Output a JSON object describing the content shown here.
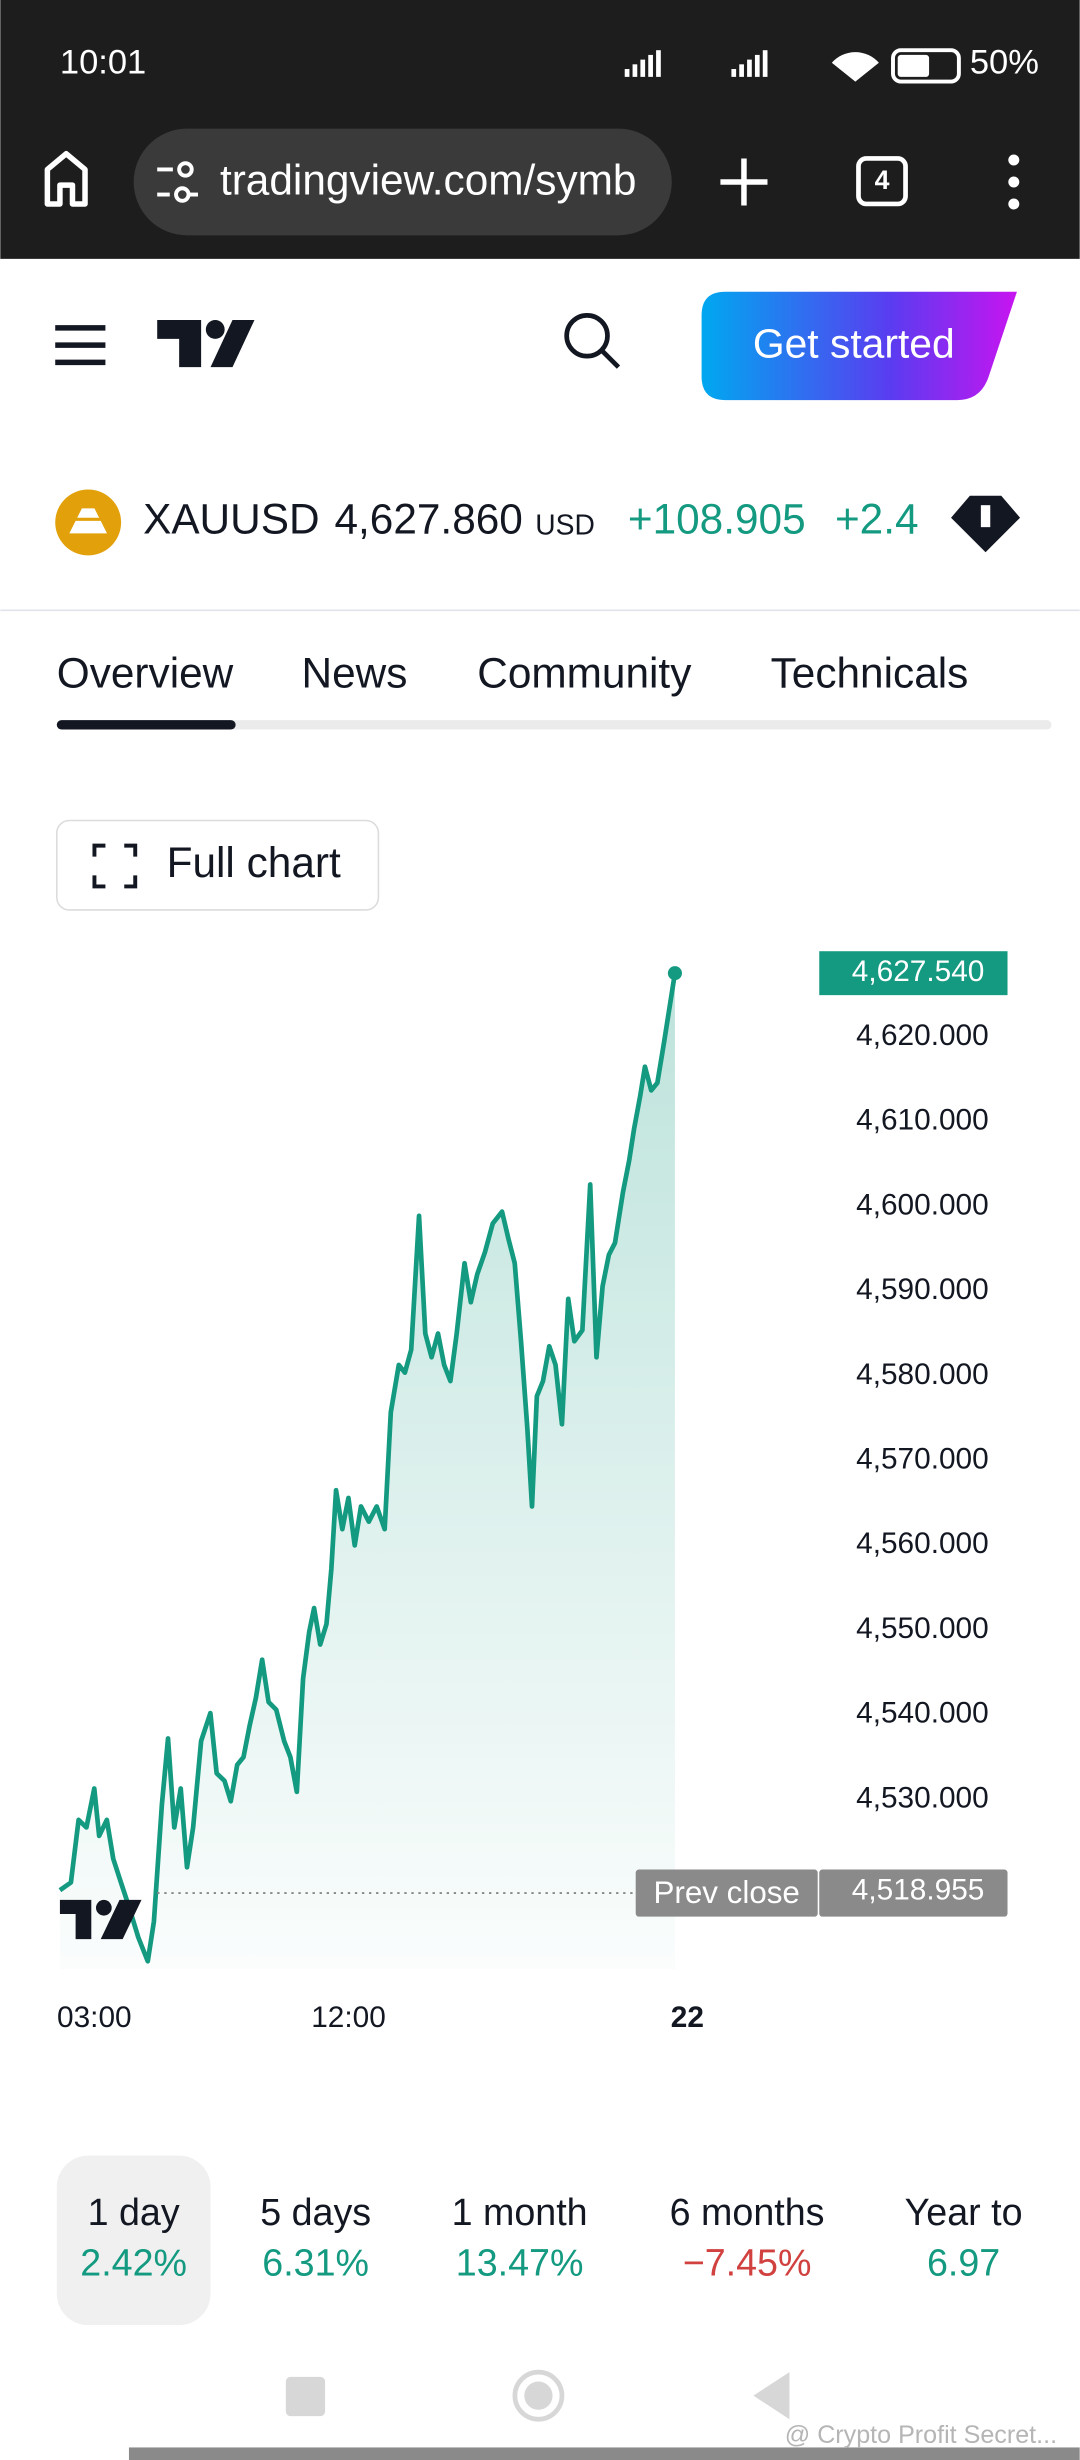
{
  "status_bar": {
    "time": "10:01",
    "battery": "50%"
  },
  "browser": {
    "url": "tradingview.com/symb",
    "tab_count": "4"
  },
  "header": {
    "cta": "Get started"
  },
  "symbol": {
    "ticker": "XAUUSD",
    "price": "4,627.860",
    "currency": "USD",
    "change": "+108.905",
    "change_pct": "+2.4"
  },
  "tabs": [
    "Overview",
    "News",
    "Community",
    "Technicals"
  ],
  "full_chart": "Full chart",
  "chart_data": {
    "type": "line",
    "color": "#149a80",
    "x": [
      1.78,
      2.17,
      2.44,
      2.72,
      3.0,
      3.17,
      3.44,
      3.67,
      3.94,
      4.22,
      4.56,
      4.89,
      5.11,
      5.39,
      5.61,
      5.83,
      6.06,
      6.28,
      6.5,
      6.78,
      7.11,
      7.33,
      7.61,
      7.83,
      8.06,
      8.28,
      8.5,
      8.72,
      8.94,
      9.17,
      9.44,
      9.72,
      9.94,
      10.17,
      10.39,
      10.61,
      10.78,
      11.0,
      11.22,
      11.39,
      11.56,
      11.78,
      12.0,
      12.22,
      12.44,
      12.72,
      13.0,
      13.28,
      13.5,
      13.78,
      14.0,
      14.22,
      14.5,
      14.72,
      14.94,
      15.17,
      15.39,
      15.61,
      15.83,
      16.11,
      16.33,
      16.56,
      16.83,
      17.11,
      17.44,
      17.67,
      17.89,
      18.11,
      18.33,
      18.5,
      18.67,
      18.89,
      19.11,
      19.33,
      19.56,
      19.78,
      20.0,
      20.28,
      20.56,
      20.78,
      21.0,
      21.22,
      21.44,
      21.72,
      21.94,
      22.11,
      22.33,
      22.5,
      22.72,
      22.94,
      23.17,
      23.39,
      23.56
    ],
    "values": [
      4519.3,
      4520.2,
      4527.6,
      4526.7,
      4531.3,
      4525.7,
      4527.6,
      4523.0,
      4520.2,
      4517.4,
      4513.7,
      4510.9,
      4515.6,
      4529.4,
      4537.2,
      4526.7,
      4531.3,
      4522.0,
      4526.7,
      4536.9,
      4540.2,
      4533.1,
      4532.2,
      4529.8,
      4534.1,
      4535.0,
      4538.7,
      4542.0,
      4546.5,
      4541.5,
      4540.6,
      4536.9,
      4535.0,
      4530.9,
      4544.3,
      4549.8,
      4552.6,
      4548.3,
      4550.7,
      4557.2,
      4566.5,
      4561.9,
      4565.6,
      4560.0,
      4564.6,
      4562.8,
      4564.6,
      4561.9,
      4575.7,
      4581.3,
      4580.4,
      4583.1,
      4598.9,
      4585.0,
      4582.2,
      4585.0,
      4581.3,
      4579.4,
      4585.0,
      4593.3,
      4588.7,
      4592.0,
      4594.6,
      4598.0,
      4599.4,
      4596.1,
      4593.3,
      4584.1,
      4573.9,
      4564.6,
      4577.6,
      4579.4,
      4583.5,
      4581.3,
      4574.3,
      4589.1,
      4584.1,
      4585.4,
      4602.6,
      4582.2,
      4590.6,
      4594.3,
      4595.7,
      4601.7,
      4605.4,
      4609.1,
      4613.1,
      4616.5,
      4613.7,
      4614.6,
      4619.3,
      4623.9,
      4627.54
    ],
    "xlim": [
      1.67,
      28.56
    ],
    "xticks": [
      {
        "value": 3,
        "label": "03:00"
      },
      {
        "value": 12,
        "label": "12:00"
      },
      {
        "value": 24,
        "label": "22"
      }
    ],
    "ylim": [
      4510,
      4631.3
    ],
    "yticks": [
      {
        "value": 4620,
        "label": "4,620.000"
      },
      {
        "value": 4610,
        "label": "4,610.000"
      },
      {
        "value": 4600,
        "label": "4,600.000"
      },
      {
        "value": 4590,
        "label": "4,590.000"
      },
      {
        "value": 4580,
        "label": "4,580.000"
      },
      {
        "value": 4570,
        "label": "4,570.000"
      },
      {
        "value": 4560,
        "label": "4,560.000"
      },
      {
        "value": 4550,
        "label": "4,550.000"
      },
      {
        "value": 4540,
        "label": "4,540.000"
      },
      {
        "value": 4530,
        "label": "4,530.000"
      }
    ],
    "last_price": {
      "value": 4627.54,
      "label": "4,627.540"
    },
    "prev_close": {
      "label": "Prev close",
      "value": 4518.955,
      "value_label": "4,518.955"
    }
  },
  "periods": [
    {
      "label": "1 day",
      "change": "2.42%",
      "color": "#149a80"
    },
    {
      "label": "5 days",
      "change": "6.31%",
      "color": "#149a80"
    },
    {
      "label": "1 month",
      "change": "13.47%",
      "color": "#149a80"
    },
    {
      "label": "6 months",
      "change": "−7.45%",
      "color": "#d0413f"
    },
    {
      "label": "Year to",
      "change": "6.97",
      "color": "#149a80"
    }
  ],
  "watermark": "@ Crypto Profit Secret..."
}
